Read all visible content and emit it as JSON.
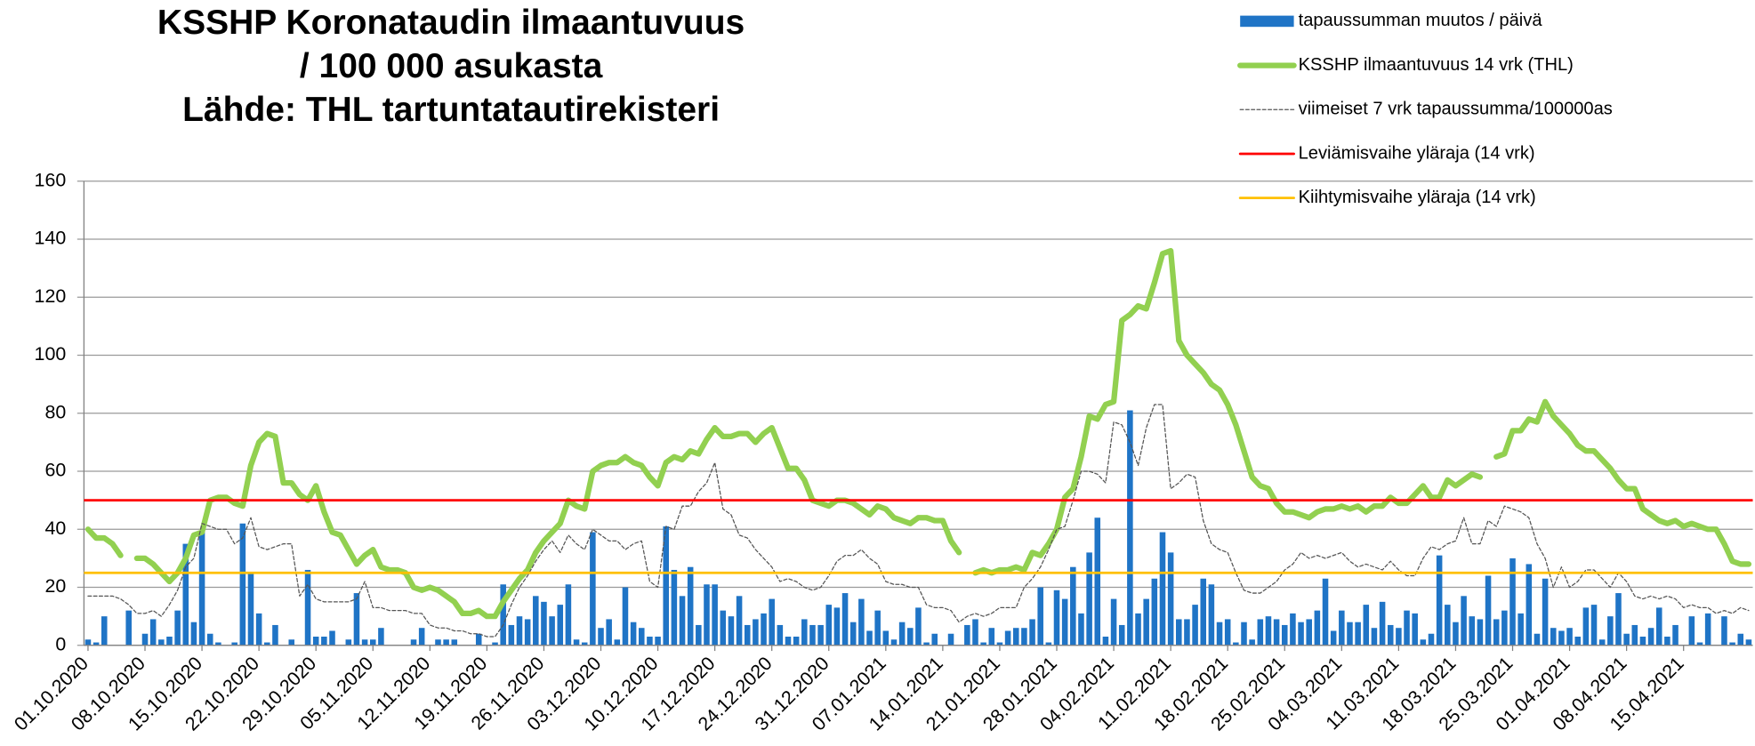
{
  "chart_data": {
    "type": "combo",
    "title": [
      "KSSHP Koronataudin ilmaantuvuus",
      "/ 100 000 asukasta",
      "Lähde: THL tartuntatautirekisteri"
    ],
    "categories": [
      "01.10.2020",
      null,
      null,
      null,
      null,
      null,
      null,
      "08.10.2020",
      null,
      null,
      null,
      null,
      null,
      null,
      "15.10.2020",
      null,
      null,
      null,
      null,
      null,
      null,
      "22.10.2020",
      null,
      null,
      null,
      null,
      null,
      null,
      "29.10.2020",
      null,
      null,
      null,
      null,
      null,
      null,
      "05.11.2020",
      null,
      null,
      null,
      null,
      null,
      null,
      "12.11.2020",
      null,
      null,
      null,
      null,
      null,
      null,
      "19.11.2020",
      null,
      null,
      null,
      null,
      null,
      null,
      "26.11.2020",
      null,
      null,
      null,
      null,
      null,
      null,
      "03.12.2020",
      null,
      null,
      null,
      null,
      null,
      null,
      "10.12.2020",
      null,
      null,
      null,
      null,
      null,
      null,
      "17.12.2020",
      null,
      null,
      null,
      null,
      null,
      null,
      "24.12.2020",
      null,
      null,
      null,
      null,
      null,
      null,
      "31.12.2020",
      null,
      null,
      null,
      null,
      null,
      null,
      "07.01.2021",
      null,
      null,
      null,
      null,
      null,
      null,
      "14.01.2021",
      null,
      null,
      null,
      null,
      null,
      null,
      "21.01.2021",
      null,
      null,
      null,
      null,
      null,
      null,
      "28.01.2021",
      null,
      null,
      null,
      null,
      null,
      null,
      "04.02.2021",
      null,
      null,
      null,
      null,
      null,
      null,
      "11.02.2021",
      null,
      null,
      null,
      null,
      null,
      null,
      "18.02.2021",
      null,
      null,
      null,
      null,
      null,
      null,
      "25.02.2021",
      null,
      null,
      null,
      null,
      null,
      null,
      "04.03.2021",
      null,
      null,
      null,
      null,
      null,
      null,
      "11.03.2021",
      null,
      null,
      null,
      null,
      null,
      null,
      "18.03.2021",
      null,
      null,
      null,
      null,
      null,
      null,
      "25.03.2021",
      null,
      null,
      null,
      null,
      null,
      null,
      "01.04.2021",
      null,
      null,
      null,
      null,
      null,
      null,
      "08.04.2021",
      null,
      null,
      null,
      null,
      null,
      null,
      "15.04.2021",
      null,
      null,
      null,
      null,
      null,
      null,
      null,
      null
    ],
    "series": [
      {
        "name": "tapaussumman muutos / päivä",
        "type": "bar",
        "color": "#1f74c6",
        "values": [
          2,
          1,
          10,
          0,
          0,
          12,
          0,
          4,
          9,
          2,
          3,
          12,
          35,
          8,
          39,
          4,
          1,
          0,
          1,
          42,
          25,
          11,
          1,
          7,
          0,
          2,
          0,
          26,
          3,
          3,
          5,
          0,
          2,
          18,
          2,
          2,
          6,
          0,
          0,
          0,
          2,
          6,
          0,
          2,
          2,
          2,
          0,
          0,
          4,
          0,
          1,
          21,
          7,
          10,
          9,
          17,
          15,
          10,
          14,
          21,
          2,
          1,
          39,
          6,
          9,
          2,
          20,
          8,
          6,
          3,
          3,
          41,
          26,
          17,
          27,
          7,
          21,
          21,
          12,
          10,
          17,
          7,
          9,
          11,
          16,
          7,
          3,
          3,
          9,
          7,
          7,
          14,
          13,
          18,
          8,
          16,
          5,
          12,
          5,
          2,
          8,
          6,
          13,
          1,
          4,
          0,
          4,
          0,
          7,
          9,
          1,
          6,
          1,
          5,
          6,
          6,
          9,
          20,
          1,
          19,
          16,
          27,
          11,
          32,
          44,
          3,
          16,
          7,
          81,
          11,
          16,
          23,
          39,
          32,
          9,
          9,
          14,
          23,
          21,
          8,
          9,
          1,
          8,
          2,
          9,
          10,
          9,
          7,
          11,
          8,
          9,
          12,
          23,
          5,
          12,
          8,
          8,
          14,
          6,
          15,
          7,
          6,
          12,
          11,
          2,
          4,
          31,
          14,
          8,
          17,
          10,
          9,
          24,
          9,
          12,
          30,
          11,
          28,
          4,
          23,
          6,
          5,
          6,
          3,
          13,
          14,
          2,
          10,
          18,
          4,
          7,
          3,
          6,
          13,
          3,
          7,
          0,
          10,
          1,
          11,
          0,
          10,
          1,
          4,
          2
        ]
      },
      {
        "name": "KSSHP ilmaantuvuus 14 vrk (THL)",
        "type": "line",
        "color": "#92d050",
        "style": "solid",
        "values": [
          40,
          37,
          37,
          35,
          31,
          null,
          30,
          30,
          28,
          25,
          22,
          25,
          30,
          38,
          39,
          50,
          51,
          51,
          49,
          48,
          62,
          70,
          73,
          72,
          56,
          56,
          52,
          50,
          55,
          46,
          39,
          38,
          33,
          28,
          31,
          33,
          27,
          26,
          26,
          25,
          20,
          19,
          20,
          19,
          17,
          15,
          11,
          11,
          12,
          10,
          10,
          15,
          19,
          23,
          26,
          32,
          36,
          39,
          42,
          50,
          48,
          47,
          60,
          62,
          63,
          63,
          65,
          63,
          62,
          58,
          55,
          63,
          65,
          64,
          67,
          66,
          71,
          75,
          72,
          72,
          73,
          73,
          70,
          73,
          75,
          68,
          61,
          61,
          57,
          50,
          49,
          48,
          50,
          50,
          49,
          47,
          45,
          48,
          47,
          44,
          43,
          42,
          44,
          44,
          43,
          43,
          36,
          32,
          null,
          25,
          26,
          25,
          26,
          26,
          27,
          26,
          32,
          31,
          35,
          40,
          51,
          54,
          65,
          79,
          78,
          83,
          84,
          112,
          114,
          117,
          116,
          125,
          135,
          136,
          105,
          100,
          97,
          94,
          90,
          88,
          83,
          76,
          67,
          58,
          55,
          54,
          49,
          46,
          46,
          45,
          44,
          46,
          47,
          47,
          48,
          47,
          48,
          46,
          48,
          48,
          51,
          49,
          49,
          52,
          55,
          51,
          51,
          57,
          55,
          57,
          59,
          58,
          null,
          65,
          66,
          74,
          74,
          78,
          77,
          84,
          79,
          76,
          73,
          69,
          67,
          67,
          64,
          61,
          57,
          54,
          54,
          47,
          45,
          43,
          42,
          43,
          41,
          42,
          41,
          40,
          40,
          35,
          29,
          28,
          28
        ]
      },
      {
        "name": "viimeiset 7 vrk tapaussumma/100000as",
        "type": "line",
        "color": "#555555",
        "style": "dashed",
        "values": [
          17,
          17,
          17,
          17,
          16,
          14,
          11,
          11,
          12,
          10,
          14,
          19,
          27,
          30,
          42,
          41,
          40,
          40,
          35,
          37,
          44,
          34,
          33,
          34,
          35,
          35,
          17,
          21,
          16,
          15,
          15,
          15,
          15,
          16,
          22,
          13,
          13,
          12,
          12,
          12,
          11,
          11,
          7,
          6,
          6,
          5,
          5,
          4,
          4,
          3,
          3,
          7,
          14,
          20,
          24,
          29,
          33,
          36,
          32,
          38,
          35,
          33,
          40,
          38,
          36,
          36,
          33,
          35,
          36,
          22,
          20,
          41,
          40,
          48,
          48,
          53,
          56,
          63,
          47,
          45,
          38,
          37,
          33,
          30,
          27,
          22,
          23,
          22,
          20,
          19,
          20,
          24,
          29,
          31,
          31,
          33,
          30,
          28,
          22,
          21,
          21,
          20,
          20,
          14,
          13,
          13,
          12,
          8,
          10,
          11,
          10,
          11,
          13,
          13,
          13,
          20,
          23,
          27,
          33,
          40,
          41,
          50,
          60,
          60,
          59,
          56,
          77,
          76,
          70,
          62,
          75,
          83,
          83,
          54,
          56,
          59,
          58,
          43,
          35,
          33,
          32,
          25,
          19,
          18,
          18,
          20,
          22,
          26,
          28,
          32,
          30,
          31,
          30,
          31,
          32,
          29,
          27,
          28,
          27,
          26,
          29,
          26,
          24,
          24,
          30,
          34,
          33,
          35,
          36,
          44,
          35,
          35,
          43,
          41,
          48,
          47,
          46,
          44,
          35,
          30,
          20,
          27,
          20,
          22,
          26,
          26,
          23,
          20,
          25,
          22,
          17,
          16,
          17,
          16,
          17,
          16,
          13,
          14,
          13,
          13,
          11,
          12,
          11,
          13,
          12
        ]
      },
      {
        "name": "Leviämisvaihe yläraja (14 vrk)",
        "type": "hline",
        "color": "#ff0000",
        "value": 50
      },
      {
        "name": "Kiihtymisvaihe yläraja (14 vrk)",
        "type": "hline",
        "color": "#ffc000",
        "value": 25
      }
    ],
    "ylim": [
      0,
      160
    ],
    "yticks": [
      0,
      20,
      40,
      60,
      80,
      100,
      120,
      140,
      160
    ],
    "grid": true,
    "legend": "top-right"
  }
}
